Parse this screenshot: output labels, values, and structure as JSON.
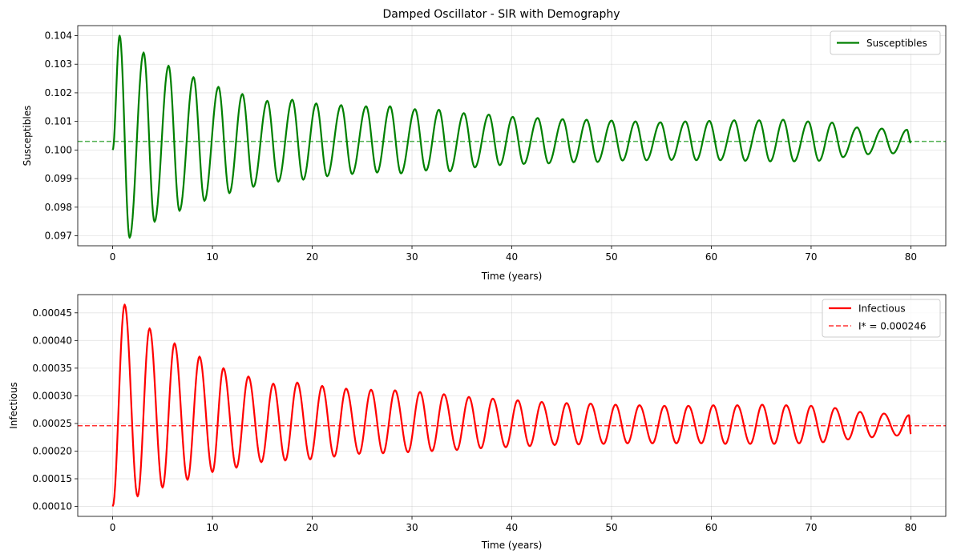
{
  "chart_data": [
    {
      "type": "line",
      "title": "Damped Oscillator - SIR with Demography",
      "xlabel": "Time (years)",
      "ylabel": "Susceptibles",
      "xlim": [
        -3.5,
        83.5
      ],
      "ylim": [
        0.09665,
        0.10435
      ],
      "xticks": [
        0,
        10,
        20,
        30,
        40,
        50,
        60,
        70,
        80
      ],
      "xtick_labels": [
        "0",
        "10",
        "20",
        "30",
        "40",
        "50",
        "60",
        "70",
        "80"
      ],
      "yticks": [
        0.097,
        0.098,
        0.099,
        0.1,
        0.101,
        0.102,
        0.103,
        0.104
      ],
      "ytick_labels": [
        "0.097",
        "0.098",
        "0.099",
        "0.100",
        "0.101",
        "0.102",
        "0.103",
        "0.104"
      ],
      "grid": true,
      "legend_position": "top-right",
      "equilibrium": {
        "y": 0.1003,
        "color": "#2ca02c",
        "style": "dashed",
        "label": ""
      },
      "series": [
        {
          "name": "Susceptibles",
          "color": "#008000",
          "start": 0.1,
          "period": 2.45,
          "mean": 0.1003,
          "extrema": [
            [
              0.7,
              0.104
            ],
            [
              1.7,
              0.09693
            ],
            [
              3.1,
              0.10341
            ],
            [
              4.2,
              0.09749
            ],
            [
              5.6,
              0.10295
            ],
            [
              6.7,
              0.09787
            ],
            [
              8.1,
              0.10255
            ],
            [
              9.2,
              0.09822
            ],
            [
              10.6,
              0.10221
            ],
            [
              11.7,
              0.09849
            ],
            [
              13.0,
              0.10196
            ],
            [
              14.1,
              0.09871
            ],
            [
              15.5,
              0.10172
            ],
            [
              16.6,
              0.09889
            ],
            [
              18.0,
              0.10176
            ],
            [
              19.1,
              0.09896
            ],
            [
              20.4,
              0.10163
            ],
            [
              21.5,
              0.09908
            ],
            [
              22.9,
              0.10157
            ],
            [
              24.0,
              0.09916
            ],
            [
              25.4,
              0.10153
            ],
            [
              26.5,
              0.09921
            ],
            [
              27.8,
              0.10153
            ],
            [
              28.9,
              0.09918
            ],
            [
              30.3,
              0.10143
            ],
            [
              31.4,
              0.09928
            ],
            [
              32.7,
              0.10141
            ],
            [
              33.8,
              0.09925
            ],
            [
              35.2,
              0.10129
            ],
            [
              36.3,
              0.09939
            ],
            [
              37.7,
              0.10124
            ],
            [
              38.8,
              0.09947
            ],
            [
              40.1,
              0.10116
            ],
            [
              41.2,
              0.09951
            ],
            [
              42.6,
              0.10112
            ],
            [
              43.7,
              0.09953
            ],
            [
              45.1,
              0.10108
            ],
            [
              46.2,
              0.09957
            ],
            [
              47.5,
              0.10106
            ],
            [
              48.6,
              0.09958
            ],
            [
              50.0,
              0.10103
            ],
            [
              51.1,
              0.09963
            ],
            [
              52.4,
              0.101
            ],
            [
              53.5,
              0.09964
            ],
            [
              54.9,
              0.10097
            ],
            [
              56.0,
              0.09965
            ],
            [
              57.4,
              0.101
            ],
            [
              58.5,
              0.09964
            ],
            [
              59.8,
              0.10102
            ],
            [
              60.9,
              0.09964
            ],
            [
              62.3,
              0.10104
            ],
            [
              63.4,
              0.09962
            ],
            [
              64.8,
              0.10104
            ],
            [
              65.9,
              0.0996
            ],
            [
              67.2,
              0.10106
            ],
            [
              68.3,
              0.0996
            ],
            [
              69.7,
              0.101
            ],
            [
              70.8,
              0.09962
            ],
            [
              72.1,
              0.10096
            ],
            [
              73.2,
              0.09975
            ],
            [
              74.6,
              0.10079
            ],
            [
              75.7,
              0.09985
            ],
            [
              77.1,
              0.10075
            ],
            [
              78.2,
              0.09988
            ],
            [
              79.6,
              0.10071
            ]
          ],
          "end": 0.10025
        }
      ]
    },
    {
      "type": "line",
      "title": "",
      "xlabel": "Time (years)",
      "ylabel": "Infectious",
      "xlim": [
        -3.5,
        83.5
      ],
      "ylim": [
        8.2e-05,
        0.000483
      ],
      "xticks": [
        0,
        10,
        20,
        30,
        40,
        50,
        60,
        70,
        80
      ],
      "xtick_labels": [
        "0",
        "10",
        "20",
        "30",
        "40",
        "50",
        "60",
        "70",
        "80"
      ],
      "yticks": [
        0.0001,
        0.00015,
        0.0002,
        0.00025,
        0.0003,
        0.00035,
        0.0004,
        0.00045
      ],
      "ytick_labels": [
        "0.00010",
        "0.00015",
        "0.00020",
        "0.00025",
        "0.00030",
        "0.00035",
        "0.00040",
        "0.00045"
      ],
      "grid": true,
      "legend_position": "top-right",
      "equilibrium": {
        "y": 0.000246,
        "color": "#ff0000",
        "style": "dashed",
        "label": "I* = 0.000246"
      },
      "series": [
        {
          "name": "Infectious",
          "color": "#ff0000",
          "start": 0.0001,
          "period": 2.45,
          "mean": 0.000246,
          "extrema": [
            [
              1.2,
              0.000465
            ],
            [
              2.5,
              0.000118
            ],
            [
              3.7,
              0.000422
            ],
            [
              5.0,
              0.000134
            ],
            [
              6.2,
              0.000395
            ],
            [
              7.5,
              0.000148
            ],
            [
              8.7,
              0.000371
            ],
            [
              10.0,
              0.000162
            ],
            [
              11.1,
              0.00035
            ],
            [
              12.4,
              0.00017
            ],
            [
              13.6,
              0.000335
            ],
            [
              14.9,
              0.00018
            ],
            [
              16.1,
              0.000322
            ],
            [
              17.3,
              0.000183
            ],
            [
              18.5,
              0.000324
            ],
            [
              19.8,
              0.000185
            ],
            [
              21.0,
              0.000318
            ],
            [
              22.2,
              0.00019
            ],
            [
              23.4,
              0.000313
            ],
            [
              24.7,
              0.000195
            ],
            [
              25.9,
              0.000311
            ],
            [
              27.1,
              0.000196
            ],
            [
              28.3,
              0.00031
            ],
            [
              29.6,
              0.000198
            ],
            [
              30.8,
              0.000307
            ],
            [
              32.0,
              0.0002
            ],
            [
              33.2,
              0.000303
            ],
            [
              34.5,
              0.000202
            ],
            [
              35.7,
              0.000298
            ],
            [
              36.9,
              0.000205
            ],
            [
              38.1,
              0.000295
            ],
            [
              39.4,
              0.000207
            ],
            [
              40.6,
              0.000292
            ],
            [
              41.8,
              0.000209
            ],
            [
              43.0,
              0.000289
            ],
            [
              44.3,
              0.000211
            ],
            [
              45.5,
              0.000287
            ],
            [
              46.7,
              0.000212
            ],
            [
              47.9,
              0.000286
            ],
            [
              49.2,
              0.000213
            ],
            [
              50.4,
              0.000284
            ],
            [
              51.6,
              0.000214
            ],
            [
              52.8,
              0.000283
            ],
            [
              54.1,
              0.000214
            ],
            [
              55.3,
              0.000282
            ],
            [
              56.5,
              0.000214
            ],
            [
              57.7,
              0.000282
            ],
            [
              59.0,
              0.000214
            ],
            [
              60.2,
              0.000283
            ],
            [
              61.4,
              0.000213
            ],
            [
              62.6,
              0.000283
            ],
            [
              63.9,
              0.000213
            ],
            [
              65.1,
              0.000284
            ],
            [
              66.3,
              0.000213
            ],
            [
              67.5,
              0.000283
            ],
            [
              68.8,
              0.000214
            ],
            [
              70.0,
              0.000282
            ],
            [
              71.2,
              0.000216
            ],
            [
              72.4,
              0.000278
            ],
            [
              73.7,
              0.000221
            ],
            [
              74.9,
              0.000271
            ],
            [
              76.1,
              0.000225
            ],
            [
              77.3,
              0.000268
            ],
            [
              78.6,
              0.000228
            ],
            [
              79.8,
              0.000265
            ]
          ],
          "end": 0.000231
        }
      ]
    }
  ]
}
